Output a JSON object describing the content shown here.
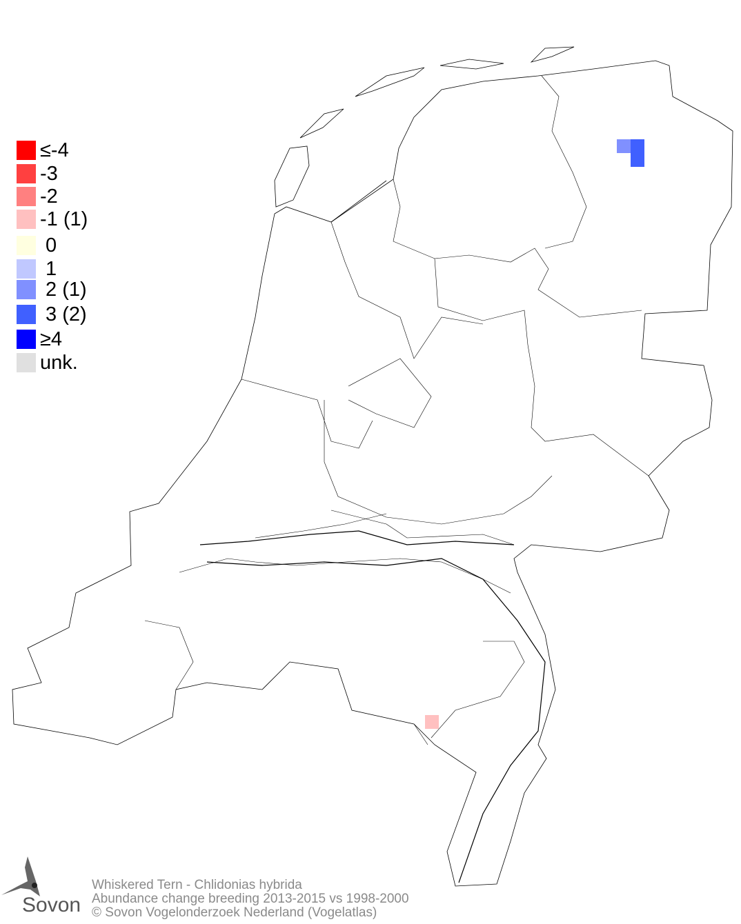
{
  "legend": [
    {
      "label": "≤-4",
      "color": "#ff0000"
    },
    {
      "label": "-3",
      "color": "#ff4040"
    },
    {
      "label": "-2",
      "color": "#ff8080"
    },
    {
      "label": "-1 (1)",
      "color": "#ffc0c0"
    },
    {
      "label": " 0",
      "color": "#ffffe0"
    },
    {
      "label": " 1",
      "color": "#c0c8ff"
    },
    {
      "label": " 2 (1)",
      "color": "#8090ff"
    },
    {
      "label": " 3 (2)",
      "color": "#4060ff"
    },
    {
      "label": "≥4",
      "color": "#0000ff"
    },
    {
      "label": "unk.",
      "color": "#e0e0e0"
    }
  ],
  "cells": [
    {
      "value": 2,
      "color": "#8090ff"
    },
    {
      "value": 3,
      "color": "#4060ff"
    },
    {
      "value": 3,
      "color": "#4060ff"
    },
    {
      "value": -1,
      "color": "#ffc0c0"
    }
  ],
  "caption": {
    "line1": "Whiskered Tern - Chlidonias hybrida",
    "line2": "Abundance change breeding  2013-2015 vs 1998-2000",
    "line3": "© Sovon Vogelonderzoek Nederland (Vogelatlas)"
  },
  "logo": {
    "text": "Sovon"
  }
}
